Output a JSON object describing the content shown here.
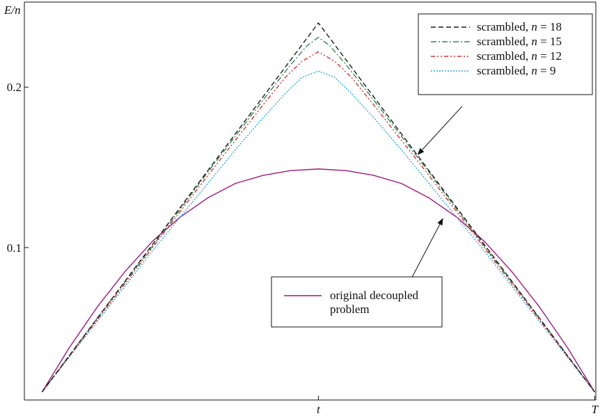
{
  "chart_data": {
    "type": "line",
    "xlabel": "",
    "ylabel": "E/n",
    "x_ticks": [
      {
        "value": 0.5,
        "label": "t"
      },
      {
        "value": 1.0,
        "label": "T"
      }
    ],
    "y_ticks": [
      {
        "value": 0.1,
        "label": "0.1"
      },
      {
        "value": 0.2,
        "label": "0.2"
      }
    ],
    "xlim": [
      -0.032,
      1.002
    ],
    "ylim": [
      0.005,
      0.253
    ],
    "grid": false,
    "series": [
      {
        "name": "scrambled, n = 18",
        "legend_prefix": "scrambled, ",
        "legend_var": "n",
        "legend_suffix": " = 18",
        "color": "#1a1a1a",
        "dash": "7,4",
        "x": [
          0.0,
          0.5,
          1.0
        ],
        "y": [
          0.01,
          0.24,
          0.01
        ]
      },
      {
        "name": "scrambled, n = 15",
        "legend_prefix": "scrambled, ",
        "legend_var": "n",
        "legend_suffix": " = 15",
        "color": "#2e8b57",
        "dash": "8,3,2,3",
        "x": [
          0.0,
          0.1,
          0.2,
          0.3,
          0.4,
          0.45,
          0.48,
          0.5,
          0.52,
          0.55,
          0.6,
          0.7,
          0.8,
          0.9,
          1.0
        ],
        "y": [
          0.01,
          0.056,
          0.101,
          0.147,
          0.192,
          0.214,
          0.226,
          0.231,
          0.226,
          0.214,
          0.192,
          0.147,
          0.101,
          0.056,
          0.01
        ]
      },
      {
        "name": "scrambled, n = 12",
        "legend_prefix": "scrambled, ",
        "legend_var": "n",
        "legend_suffix": " = 12",
        "color": "#e03030",
        "dash": "6,3,2,3,2,3",
        "x": [
          0.0,
          0.1,
          0.2,
          0.3,
          0.4,
          0.44,
          0.47,
          0.5,
          0.53,
          0.56,
          0.6,
          0.7,
          0.8,
          0.9,
          1.0
        ],
        "y": [
          0.01,
          0.055,
          0.1,
          0.145,
          0.189,
          0.206,
          0.216,
          0.222,
          0.216,
          0.206,
          0.189,
          0.145,
          0.1,
          0.055,
          0.01
        ]
      },
      {
        "name": "scrambled, n = 9",
        "legend_prefix": "scrambled, ",
        "legend_var": "n",
        "legend_suffix": " = 9",
        "color": "#2aa7e0",
        "dash": "2,2",
        "x": [
          0.0,
          0.1,
          0.2,
          0.3,
          0.35,
          0.4,
          0.44,
          0.47,
          0.5,
          0.53,
          0.56,
          0.6,
          0.65,
          0.7,
          0.8,
          0.9,
          1.0
        ],
        "y": [
          0.01,
          0.054,
          0.098,
          0.14,
          0.161,
          0.181,
          0.196,
          0.206,
          0.21,
          0.206,
          0.196,
          0.181,
          0.161,
          0.14,
          0.098,
          0.054,
          0.01
        ]
      },
      {
        "name": "original decoupled problem",
        "legend_lines": [
          "original decoupled",
          "problem"
        ],
        "color": "#a0157f",
        "dash": "",
        "x": [
          0.0,
          0.05,
          0.1,
          0.15,
          0.2,
          0.25,
          0.3,
          0.35,
          0.4,
          0.45,
          0.5,
          0.55,
          0.6,
          0.65,
          0.7,
          0.75,
          0.8,
          0.85,
          0.9,
          0.95,
          1.0
        ],
        "y": [
          0.01,
          0.038,
          0.063,
          0.085,
          0.104,
          0.119,
          0.131,
          0.14,
          0.145,
          0.148,
          0.149,
          0.148,
          0.145,
          0.14,
          0.131,
          0.119,
          0.104,
          0.085,
          0.063,
          0.038,
          0.01
        ]
      }
    ],
    "legend_placement": "top-right",
    "annotations": [
      {
        "type": "arrow",
        "target": "scrambled",
        "from": {
          "x": 0.76,
          "y": 0.188
        },
        "to": {
          "x": 0.68,
          "y": 0.158
        }
      },
      {
        "type": "arrow",
        "target": "original decoupled problem",
        "from": {
          "x": 0.655,
          "y": 0.072
        },
        "to": {
          "x": 0.725,
          "y": 0.118
        }
      }
    ]
  }
}
